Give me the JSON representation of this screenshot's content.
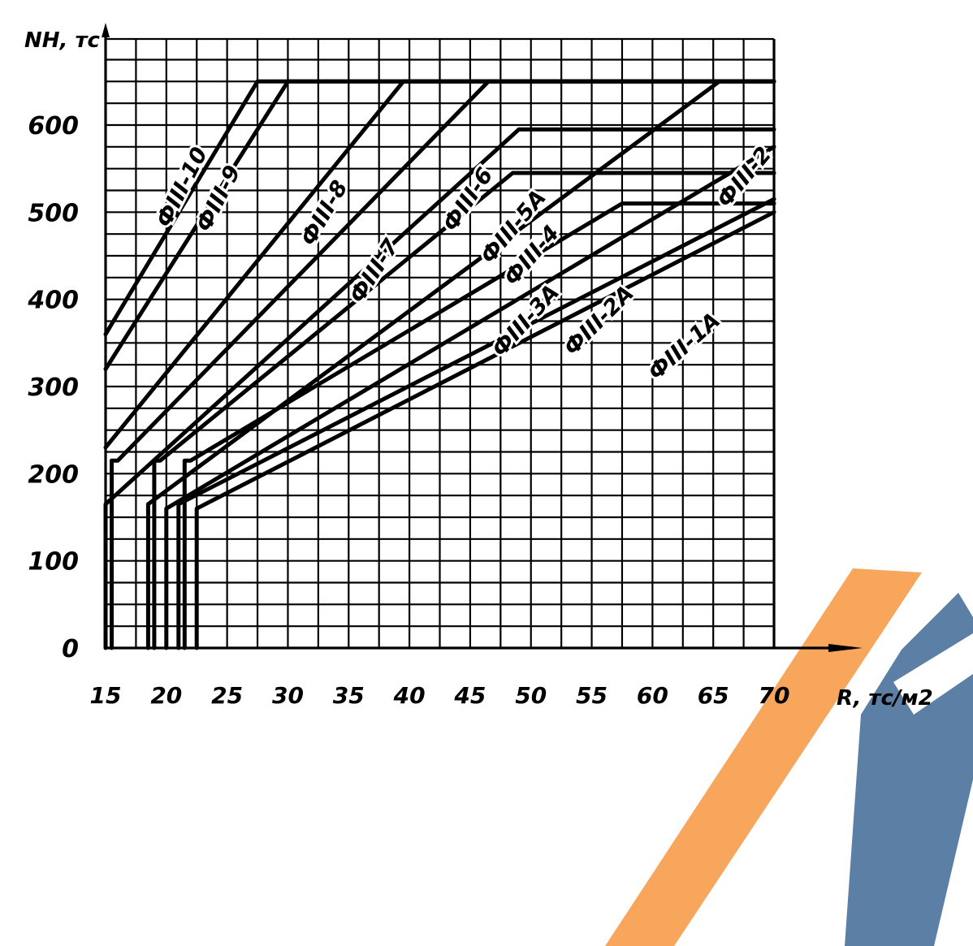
{
  "chart_data": {
    "type": "line",
    "title": "",
    "ylabel": "NН, тс",
    "xlabel": "R, тс/м2",
    "xlim": [
      15,
      70
    ],
    "ylim": [
      0,
      650
    ],
    "x_ticks": [
      15,
      20,
      25,
      30,
      35,
      40,
      45,
      50,
      55,
      60,
      65,
      70
    ],
    "x_tick_labels": [
      "15",
      "20",
      "25",
      "30",
      "35",
      "40",
      "45",
      "50",
      "55",
      "60",
      "65",
      "70"
    ],
    "y_ticks": [
      0,
      100,
      200,
      300,
      400,
      500,
      600
    ],
    "y_tick_labels": [
      "0",
      "100",
      "200",
      "300",
      "400",
      "500",
      "600"
    ],
    "grid": true,
    "legend": "none",
    "series": [
      {
        "name": "ФIII-10",
        "points": [
          [
            15,
            360
          ],
          [
            27.5,
            650
          ],
          [
            70,
            650
          ]
        ]
      },
      {
        "name": "ФIII-9",
        "points": [
          [
            15,
            320
          ],
          [
            30,
            650
          ],
          [
            70,
            650
          ]
        ]
      },
      {
        "name": "ФIII-8",
        "points": [
          [
            15,
            230
          ],
          [
            39.5,
            650
          ],
          [
            70,
            650
          ]
        ]
      },
      {
        "name": "ФIII-7",
        "points": [
          [
            15.5,
            0
          ],
          [
            15.5,
            215
          ],
          [
            16,
            215
          ],
          [
            46.5,
            650
          ],
          [
            70,
            650
          ]
        ]
      },
      {
        "name": "ФIII-6",
        "points": [
          [
            15,
            0
          ],
          [
            15,
            165
          ],
          [
            49,
            595
          ],
          [
            70,
            595
          ]
        ]
      },
      {
        "name": "ФIII-5A",
        "points": [
          [
            19,
            0
          ],
          [
            19,
            215
          ],
          [
            19.5,
            215
          ],
          [
            48.5,
            545
          ],
          [
            70,
            545
          ]
        ]
      },
      {
        "name": "ФIII-4",
        "points": [
          [
            18.5,
            0
          ],
          [
            18.5,
            165
          ],
          [
            65.5,
            650
          ]
        ]
      },
      {
        "name": "ФIII-3A",
        "points": [
          [
            21.5,
            0
          ],
          [
            21.5,
            215
          ],
          [
            22,
            215
          ],
          [
            57.5,
            510
          ],
          [
            70,
            510
          ]
        ]
      },
      {
        "name": "ФIII-2",
        "points": [
          [
            20,
            0
          ],
          [
            20,
            160
          ],
          [
            70,
            575
          ]
        ]
      },
      {
        "name": "ФIII-2A",
        "points": [
          [
            21,
            0
          ],
          [
            21,
            165
          ],
          [
            70,
            515
          ]
        ]
      },
      {
        "name": "ФIII-1A",
        "points": [
          [
            22.5,
            0
          ],
          [
            22.5,
            160
          ],
          [
            70,
            500
          ]
        ]
      }
    ]
  },
  "watermark": {
    "colors": [
      "#f7a65c",
      "#5c7fa6"
    ]
  }
}
